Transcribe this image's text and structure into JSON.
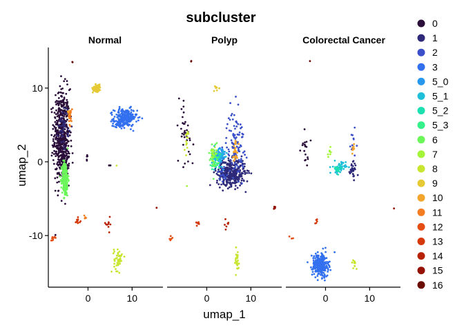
{
  "chart_data": {
    "type": "scatter",
    "title": "subcluster",
    "xlabel": "umap_1",
    "ylabel": "umap_2",
    "facets": [
      "Normal",
      "Polyp",
      "Colorectal Cancer"
    ],
    "xlim": [
      -9,
      17
    ],
    "ylim": [
      -17,
      15.5
    ],
    "x_ticks": [
      0,
      10
    ],
    "y_ticks": [
      -10,
      0,
      10
    ],
    "grid": false,
    "legend_position": "right",
    "legend": [
      {
        "label": "0",
        "color": "#2b0f3a"
      },
      {
        "label": "1",
        "color": "#2e2a79"
      },
      {
        "label": "2",
        "color": "#3a4fc8"
      },
      {
        "label": "3",
        "color": "#3270ef"
      },
      {
        "label": "5_0",
        "color": "#2897ee"
      },
      {
        "label": "5_1",
        "color": "#1fbfd9"
      },
      {
        "label": "5_2",
        "color": "#1de0b0"
      },
      {
        "label": "5_3",
        "color": "#36f089"
      },
      {
        "label": "6",
        "color": "#6bf65a"
      },
      {
        "label": "7",
        "color": "#a4f53a"
      },
      {
        "label": "8",
        "color": "#c8e52f"
      },
      {
        "label": "9",
        "color": "#e5ca36"
      },
      {
        "label": "10",
        "color": "#f4a52e"
      },
      {
        "label": "11",
        "color": "#f47d22"
      },
      {
        "label": "12",
        "color": "#e54e13"
      },
      {
        "label": "13",
        "color": "#d53809"
      },
      {
        "label": "14",
        "color": "#b82204"
      },
      {
        "label": "15",
        "color": "#951203"
      },
      {
        "label": "16",
        "color": "#6b0c04"
      }
    ],
    "series": [
      {
        "facet": "Normal",
        "clusters": [
          {
            "label": "0",
            "x": -6,
            "y": 3.5,
            "sx": 0.9,
            "sy": 3.2,
            "n": 520
          },
          {
            "label": "0",
            "x": -5.3,
            "y": 0.5,
            "sx": 0.5,
            "sy": 1.2,
            "n": 60
          },
          {
            "label": "0",
            "x": -0.2,
            "y": 0.5,
            "sx": 0.1,
            "sy": 0.2,
            "n": 5
          },
          {
            "label": "0",
            "x": 5,
            "y": -0.5,
            "sx": 0.15,
            "sy": 0.15,
            "n": 3
          },
          {
            "label": "1",
            "x": -5.5,
            "y": 5,
            "sx": 0.6,
            "sy": 1.5,
            "n": 40
          },
          {
            "label": "3",
            "x": 8.5,
            "y": 6,
            "sx": 1.3,
            "sy": 0.6,
            "n": 220
          },
          {
            "label": "3",
            "x": 7.2,
            "y": 5.2,
            "sx": 0.8,
            "sy": 0.3,
            "n": 40
          },
          {
            "label": "6",
            "x": -5.2,
            "y": -2.3,
            "sx": 0.35,
            "sy": 1.2,
            "n": 220
          },
          {
            "label": "9",
            "x": 2,
            "y": 10,
            "sx": 0.45,
            "sy": 0.25,
            "n": 80
          },
          {
            "label": "10",
            "x": -4.3,
            "y": 6.6,
            "sx": 0.15,
            "sy": 0.3,
            "n": 15
          },
          {
            "label": "11",
            "x": -4,
            "y": 6.2,
            "sx": 0.2,
            "sy": 0.6,
            "n": 20
          },
          {
            "label": "8",
            "x": 6.8,
            "y": -13.2,
            "sx": 0.45,
            "sy": 0.8,
            "n": 45
          },
          {
            "label": "13",
            "x": -2.2,
            "y": -8.2,
            "sx": 0.3,
            "sy": 0.3,
            "n": 12
          },
          {
            "label": "11",
            "x": -0.6,
            "y": -7.3,
            "sx": 0.15,
            "sy": 0.3,
            "n": 7
          },
          {
            "label": "14",
            "x": 4.5,
            "y": -8.5,
            "sx": 0.4,
            "sy": 0.4,
            "n": 10
          },
          {
            "label": "12",
            "x": -7.8,
            "y": -10.3,
            "sx": 0.3,
            "sy": 0.15,
            "n": 8
          },
          {
            "label": "16",
            "x": -3.5,
            "y": 13.6,
            "sx": 0.05,
            "sy": 0.05,
            "n": 2
          },
          {
            "label": "15",
            "x": 15.5,
            "y": -6.2,
            "sx": 0.05,
            "sy": 0.05,
            "n": 1
          },
          {
            "label": "8",
            "x": 6.5,
            "y": -0.5,
            "sx": 0.05,
            "sy": 0.05,
            "n": 1
          }
        ]
      },
      {
        "facet": "Polyp",
        "clusters": [
          {
            "label": "1",
            "x": 5.5,
            "y": -1.5,
            "sx": 1.6,
            "sy": 0.9,
            "n": 380
          },
          {
            "label": "2",
            "x": 6.5,
            "y": 2.5,
            "sx": 1.0,
            "sy": 2.2,
            "n": 110
          },
          {
            "label": "2",
            "x": 3.5,
            "y": -1.5,
            "sx": 0.5,
            "sy": 0.5,
            "n": 20
          },
          {
            "label": "5_0",
            "x": 3,
            "y": 0.8,
            "sx": 0.6,
            "sy": 0.7,
            "n": 70
          },
          {
            "label": "5_1",
            "x": 2.5,
            "y": 0.5,
            "sx": 0.7,
            "sy": 0.6,
            "n": 50
          },
          {
            "label": "5_3",
            "x": 2.0,
            "y": 0.2,
            "sx": 0.5,
            "sy": 0.8,
            "n": 25
          },
          {
            "label": "6",
            "x": 1.5,
            "y": 0.6,
            "sx": 0.5,
            "sy": 1.0,
            "n": 30
          },
          {
            "label": "7",
            "x": 1.6,
            "y": 1.4,
            "sx": 0.3,
            "sy": 0.5,
            "n": 15
          },
          {
            "label": "10",
            "x": 6.5,
            "y": 1.5,
            "sx": 0.3,
            "sy": 0.8,
            "n": 25
          },
          {
            "label": "0",
            "x": -5,
            "y": 4,
            "sx": 1.0,
            "sy": 2.5,
            "n": 35
          },
          {
            "label": "8",
            "x": -4.5,
            "y": 3,
            "sx": 0.3,
            "sy": 0.8,
            "n": 14
          },
          {
            "label": "9",
            "x": 2,
            "y": 9.8,
            "sx": 0.3,
            "sy": 0.3,
            "n": 8
          },
          {
            "label": "8",
            "x": 6.8,
            "y": -13.5,
            "sx": 0.35,
            "sy": 0.8,
            "n": 28
          },
          {
            "label": "13",
            "x": -2.2,
            "y": -8.2,
            "sx": 0.3,
            "sy": 0.3,
            "n": 8
          },
          {
            "label": "14",
            "x": 4.5,
            "y": -8.5,
            "sx": 0.3,
            "sy": 0.4,
            "n": 7
          },
          {
            "label": "12",
            "x": -7.8,
            "y": -10.3,
            "sx": 0.3,
            "sy": 0.15,
            "n": 5
          },
          {
            "label": "16",
            "x": -3.5,
            "y": 13.6,
            "sx": 0.05,
            "sy": 0.05,
            "n": 2
          },
          {
            "label": "15",
            "x": 15.5,
            "y": -6.2,
            "sx": 0.1,
            "sy": 0.1,
            "n": 5
          },
          {
            "label": "7",
            "x": -4.5,
            "y": -3.3,
            "sx": 0.05,
            "sy": 0.05,
            "n": 1
          }
        ]
      },
      {
        "facet": "Colorectal Cancer",
        "clusters": [
          {
            "label": "3",
            "x": -1.2,
            "y": -14,
            "sx": 0.9,
            "sy": 0.8,
            "n": 280
          },
          {
            "label": "1",
            "x": 6.3,
            "y": -1.0,
            "sx": 0.4,
            "sy": 0.6,
            "n": 30
          },
          {
            "label": "5_1",
            "x": 3.2,
            "y": -0.8,
            "sx": 0.7,
            "sy": 0.4,
            "n": 45
          },
          {
            "label": "5_2",
            "x": 2.8,
            "y": -1.0,
            "sx": 0.5,
            "sy": 0.3,
            "n": 15
          },
          {
            "label": "2",
            "x": 6.3,
            "y": 2.5,
            "sx": 0.5,
            "sy": 1.0,
            "n": 15
          },
          {
            "label": "10",
            "x": 6.3,
            "y": 1.8,
            "sx": 0.2,
            "sy": 0.4,
            "n": 8
          },
          {
            "label": "0",
            "x": -4.5,
            "y": 2,
            "sx": 0.5,
            "sy": 1.2,
            "n": 18
          },
          {
            "label": "7",
            "x": 0.8,
            "y": 1.2,
            "sx": 0.3,
            "sy": 0.4,
            "n": 8
          },
          {
            "label": "8",
            "x": 6.5,
            "y": -14,
            "sx": 0.3,
            "sy": 0.5,
            "n": 10
          },
          {
            "label": "13",
            "x": -2.2,
            "y": -8.2,
            "sx": 0.25,
            "sy": 0.25,
            "n": 5
          },
          {
            "label": "12",
            "x": -7.8,
            "y": -10.3,
            "sx": 0.2,
            "sy": 0.1,
            "n": 3
          },
          {
            "label": "16",
            "x": -3.5,
            "y": 13.6,
            "sx": 0.05,
            "sy": 0.05,
            "n": 1
          },
          {
            "label": "15",
            "x": 15.5,
            "y": -6.2,
            "sx": 0.05,
            "sy": 0.05,
            "n": 1
          }
        ]
      }
    ]
  }
}
